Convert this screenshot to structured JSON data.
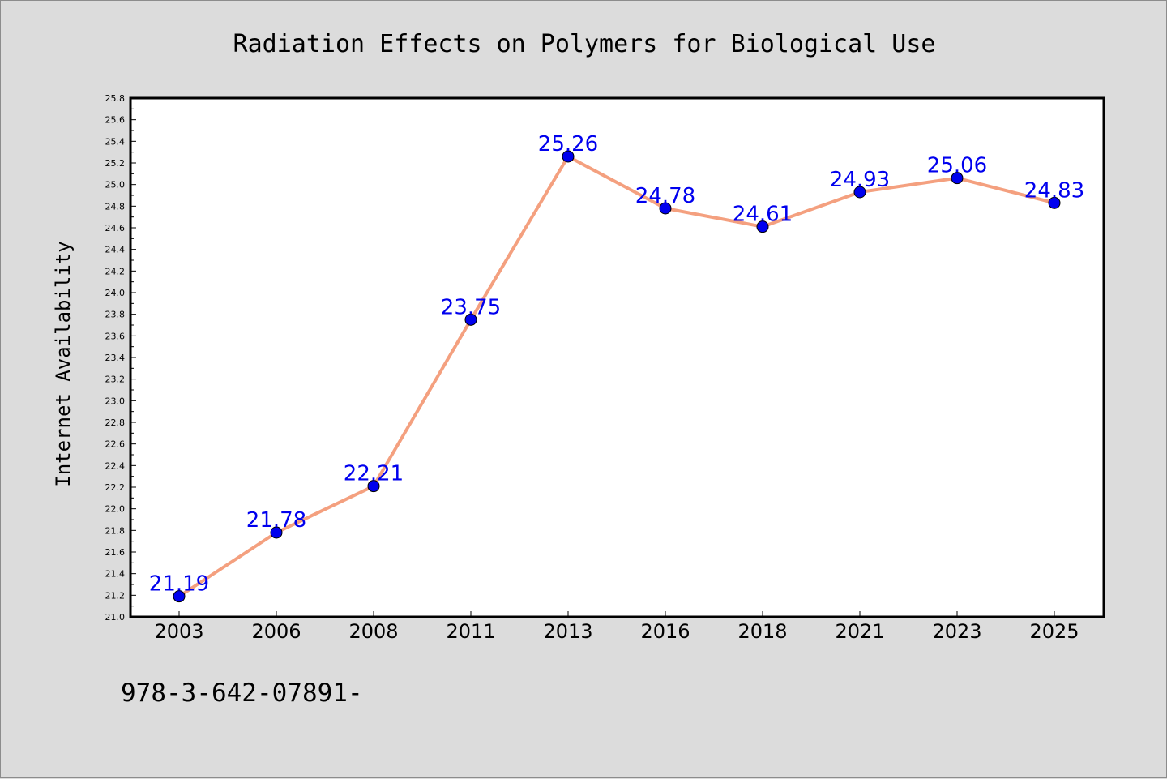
{
  "chart_data": {
    "type": "line",
    "title": "Radiation Effects on Polymers for Biological Use",
    "xlabel": "",
    "ylabel": "Internet Availability",
    "categories": [
      "2003",
      "2006",
      "2008",
      "2011",
      "2013",
      "2016",
      "2018",
      "2021",
      "2023",
      "2025"
    ],
    "series": [
      {
        "values": [
          21.19,
          21.78,
          22.21,
          23.75,
          25.26,
          24.78,
          24.61,
          24.93,
          25.06,
          24.83
        ],
        "labels": [
          "21.19",
          "21.78",
          "22.21",
          "23.75",
          "25.26",
          "24.78",
          "24.61",
          "24.93",
          "25.06",
          "24.83"
        ],
        "line_color": "#f4a07f",
        "marker_color": "#0000ee"
      }
    ],
    "ylim": [
      21.0,
      25.8
    ],
    "ytick_step": 0.2,
    "grid": false,
    "legend": "none"
  },
  "footnote": "978-3-642-07891-",
  "colors": {
    "background": "#dcdcdc",
    "plot_area": "#ffffff",
    "label_color": "#0000ee"
  }
}
